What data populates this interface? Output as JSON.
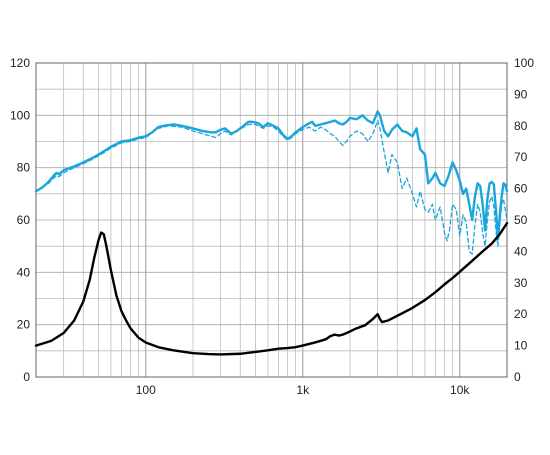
{
  "chart_data": {
    "type": "line",
    "title": "",
    "xlabel": "",
    "ylabel": "",
    "y2label": "",
    "x_scale": "log",
    "xlim": [
      20,
      20000
    ],
    "ylim": [
      0,
      120
    ],
    "y2lim": [
      0,
      100
    ],
    "grid": true,
    "legend": "none",
    "x_tick_labels": [
      {
        "value": 100,
        "label": "100"
      },
      {
        "value": 1000,
        "label": "1k"
      },
      {
        "value": 10000,
        "label": "10k"
      }
    ],
    "y_ticks": [
      0,
      20,
      40,
      60,
      80,
      100,
      120
    ],
    "y2_ticks": [
      0,
      10,
      20,
      30,
      40,
      50,
      60,
      70,
      80,
      90,
      100
    ],
    "colors": {
      "response": "#1aa6dc",
      "impedance": "#000000",
      "grid": "#bdbdbd",
      "axis": "#666666"
    },
    "series": [
      {
        "axis": "left",
        "style": "solid",
        "color": "#1aa6dc",
        "points": [
          [
            20,
            71
          ],
          [
            22,
            72.5
          ],
          [
            24,
            74.5
          ],
          [
            26,
            77
          ],
          [
            27,
            78
          ],
          [
            28,
            77.5
          ],
          [
            30,
            79
          ],
          [
            35,
            80.5
          ],
          [
            40,
            82
          ],
          [
            45,
            83.5
          ],
          [
            50,
            85
          ],
          [
            55,
            86.5
          ],
          [
            60,
            88
          ],
          [
            65,
            89
          ],
          [
            70,
            90
          ],
          [
            80,
            90.5
          ],
          [
            90,
            91.5
          ],
          [
            100,
            92
          ],
          [
            110,
            93.5
          ],
          [
            120,
            95.5
          ],
          [
            130,
            96
          ],
          [
            150,
            96.5
          ],
          [
            170,
            96
          ],
          [
            200,
            95
          ],
          [
            230,
            94
          ],
          [
            260,
            93.5
          ],
          [
            280,
            93.5
          ],
          [
            300,
            94.5
          ],
          [
            320,
            95
          ],
          [
            350,
            93
          ],
          [
            380,
            94
          ],
          [
            420,
            96
          ],
          [
            450,
            97.5
          ],
          [
            480,
            97.5
          ],
          [
            520,
            97
          ],
          [
            560,
            95.5
          ],
          [
            600,
            97
          ],
          [
            650,
            96
          ],
          [
            700,
            95
          ],
          [
            750,
            92.5
          ],
          [
            800,
            91
          ],
          [
            850,
            92
          ],
          [
            900,
            93.5
          ],
          [
            1000,
            95.5
          ],
          [
            1100,
            97
          ],
          [
            1150,
            97.5
          ],
          [
            1200,
            96
          ],
          [
            1300,
            96.5
          ],
          [
            1400,
            97
          ],
          [
            1500,
            97.5
          ],
          [
            1600,
            98
          ],
          [
            1700,
            97
          ],
          [
            1800,
            96.5
          ],
          [
            1900,
            97.5
          ],
          [
            2000,
            99
          ],
          [
            2200,
            98.5
          ],
          [
            2400,
            100
          ],
          [
            2600,
            98
          ],
          [
            2800,
            97
          ],
          [
            3000,
            101.5
          ],
          [
            3100,
            100
          ],
          [
            3300,
            94
          ],
          [
            3500,
            92
          ],
          [
            3700,
            94.5
          ],
          [
            4000,
            96.5
          ],
          [
            4300,
            94
          ],
          [
            4600,
            93.5
          ],
          [
            5000,
            92
          ],
          [
            5300,
            95
          ],
          [
            5600,
            87
          ],
          [
            6000,
            85
          ],
          [
            6300,
            74
          ],
          [
            6700,
            76
          ],
          [
            7000,
            78
          ],
          [
            7500,
            74
          ],
          [
            8000,
            73
          ],
          [
            8500,
            77
          ],
          [
            9000,
            82
          ],
          [
            9500,
            79
          ],
          [
            10000,
            75
          ],
          [
            10500,
            70
          ],
          [
            11000,
            72
          ],
          [
            11500,
            66
          ],
          [
            12000,
            60
          ],
          [
            12500,
            69
          ],
          [
            13000,
            74
          ],
          [
            13500,
            73
          ],
          [
            14000,
            66
          ],
          [
            14500,
            56
          ],
          [
            15000,
            68
          ],
          [
            15500,
            74
          ],
          [
            16000,
            74.5
          ],
          [
            16500,
            73.5
          ],
          [
            17000,
            64
          ],
          [
            17500,
            53
          ],
          [
            18000,
            62
          ],
          [
            18500,
            69
          ],
          [
            19000,
            74
          ],
          [
            19500,
            73.5
          ],
          [
            20000,
            71
          ]
        ]
      },
      {
        "axis": "left",
        "style": "dashed",
        "color": "#1aa6dc",
        "points": [
          [
            20,
            71
          ],
          [
            24,
            74
          ],
          [
            27,
            77
          ],
          [
            28,
            76.5
          ],
          [
            30,
            78
          ],
          [
            35,
            80
          ],
          [
            40,
            81.5
          ],
          [
            45,
            83
          ],
          [
            50,
            84.5
          ],
          [
            55,
            86
          ],
          [
            60,
            87.5
          ],
          [
            65,
            88.5
          ],
          [
            70,
            89.5
          ],
          [
            80,
            90
          ],
          [
            90,
            91
          ],
          [
            100,
            91.5
          ],
          [
            120,
            95
          ],
          [
            140,
            96
          ],
          [
            170,
            95.5
          ],
          [
            200,
            94
          ],
          [
            230,
            93
          ],
          [
            260,
            92
          ],
          [
            280,
            91.5
          ],
          [
            300,
            93
          ],
          [
            320,
            94
          ],
          [
            350,
            92.5
          ],
          [
            380,
            94
          ],
          [
            420,
            95.5
          ],
          [
            450,
            96.5
          ],
          [
            500,
            96.5
          ],
          [
            560,
            95
          ],
          [
            600,
            96
          ],
          [
            650,
            95.5
          ],
          [
            700,
            94
          ],
          [
            750,
            92
          ],
          [
            800,
            90.5
          ],
          [
            850,
            91.5
          ],
          [
            900,
            93
          ],
          [
            1000,
            94.5
          ],
          [
            1100,
            95.5
          ],
          [
            1200,
            94
          ],
          [
            1300,
            95.5
          ],
          [
            1400,
            94.5
          ],
          [
            1500,
            93
          ],
          [
            1600,
            92
          ],
          [
            1700,
            90
          ],
          [
            1800,
            88.5
          ],
          [
            1900,
            90
          ],
          [
            2000,
            92
          ],
          [
            2200,
            94
          ],
          [
            2400,
            93
          ],
          [
            2600,
            90
          ],
          [
            2800,
            93
          ],
          [
            3000,
            98
          ],
          [
            3100,
            95
          ],
          [
            3300,
            86
          ],
          [
            3500,
            78
          ],
          [
            3700,
            85
          ],
          [
            4000,
            82
          ],
          [
            4300,
            72
          ],
          [
            4600,
            76
          ],
          [
            5000,
            70
          ],
          [
            5300,
            65
          ],
          [
            5600,
            71
          ],
          [
            6000,
            64
          ],
          [
            6300,
            63
          ],
          [
            6700,
            66
          ],
          [
            7000,
            60
          ],
          [
            7500,
            65
          ],
          [
            8000,
            55
          ],
          [
            8300,
            52
          ],
          [
            8600,
            56
          ],
          [
            9000,
            66
          ],
          [
            9500,
            64
          ],
          [
            10000,
            54
          ],
          [
            10500,
            62
          ],
          [
            11000,
            59
          ],
          [
            11500,
            48
          ],
          [
            12000,
            47
          ],
          [
            12500,
            58
          ],
          [
            13000,
            66
          ],
          [
            13500,
            63
          ],
          [
            14000,
            55
          ],
          [
            14500,
            50
          ],
          [
            15000,
            60
          ],
          [
            15500,
            67
          ],
          [
            16000,
            69
          ],
          [
            16500,
            65
          ],
          [
            17000,
            56
          ],
          [
            17500,
            50
          ],
          [
            18000,
            58
          ],
          [
            18500,
            66
          ],
          [
            19000,
            68
          ],
          [
            19500,
            64
          ],
          [
            20000,
            60
          ]
        ]
      },
      {
        "axis": "right",
        "style": "solid",
        "color": "#000000",
        "points": [
          [
            20,
            10
          ],
          [
            25,
            11.5
          ],
          [
            30,
            14
          ],
          [
            35,
            18
          ],
          [
            40,
            24
          ],
          [
            44,
            31
          ],
          [
            47,
            38
          ],
          [
            50,
            43.5
          ],
          [
            52,
            46
          ],
          [
            54,
            45.5
          ],
          [
            56,
            42
          ],
          [
            60,
            34
          ],
          [
            65,
            26
          ],
          [
            70,
            21
          ],
          [
            75,
            18
          ],
          [
            80,
            15.5
          ],
          [
            90,
            12.5
          ],
          [
            100,
            11
          ],
          [
            120,
            9.5
          ],
          [
            150,
            8.5
          ],
          [
            200,
            7.6
          ],
          [
            250,
            7.3
          ],
          [
            300,
            7.2
          ],
          [
            400,
            7.4
          ],
          [
            500,
            8
          ],
          [
            600,
            8.5
          ],
          [
            700,
            9
          ],
          [
            800,
            9.2
          ],
          [
            900,
            9.5
          ],
          [
            1000,
            10
          ],
          [
            1200,
            11
          ],
          [
            1400,
            12
          ],
          [
            1500,
            13
          ],
          [
            1600,
            13.5
          ],
          [
            1700,
            13.2
          ],
          [
            1800,
            13.5
          ],
          [
            2000,
            14.5
          ],
          [
            2200,
            15.5
          ],
          [
            2500,
            16.5
          ],
          [
            2800,
            18.5
          ],
          [
            3000,
            20
          ],
          [
            3100,
            18.5
          ],
          [
            3200,
            17.5
          ],
          [
            3500,
            18
          ],
          [
            4000,
            19.5
          ],
          [
            5000,
            22
          ],
          [
            6000,
            24.5
          ],
          [
            7000,
            27
          ],
          [
            8000,
            29.5
          ],
          [
            9000,
            31.5
          ],
          [
            10000,
            33.5
          ],
          [
            12000,
            37
          ],
          [
            14000,
            40
          ],
          [
            16000,
            42.5
          ],
          [
            18000,
            45.5
          ],
          [
            20000,
            49
          ]
        ]
      }
    ]
  }
}
